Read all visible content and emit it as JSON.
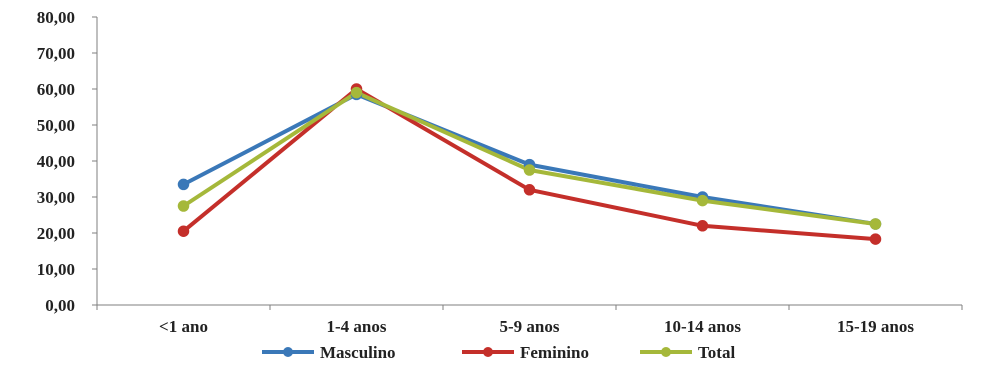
{
  "chart_data": {
    "type": "line",
    "categories": [
      "<1 ano",
      "1-4 anos",
      "5-9 anos",
      "10-14 anos",
      "15-19 anos"
    ],
    "series": [
      {
        "name": "Masculino",
        "color": "#3a78b8",
        "values": [
          33.5,
          58.5,
          39.0,
          30.0,
          22.5
        ]
      },
      {
        "name": "Feminino",
        "color": "#c42f2a",
        "values": [
          20.5,
          60.0,
          32.0,
          22.0,
          18.3
        ]
      },
      {
        "name": "Total",
        "color": "#a5b83a",
        "values": [
          27.5,
          59.0,
          37.5,
          29.0,
          22.5
        ]
      }
    ],
    "y_ticks": [
      "0,00",
      "10,00",
      "20,00",
      "30,00",
      "40,00",
      "50,00",
      "60,00",
      "70,00",
      "80,00"
    ],
    "ylim": [
      0,
      80
    ],
    "legend_position": "bottom",
    "grid": false
  }
}
